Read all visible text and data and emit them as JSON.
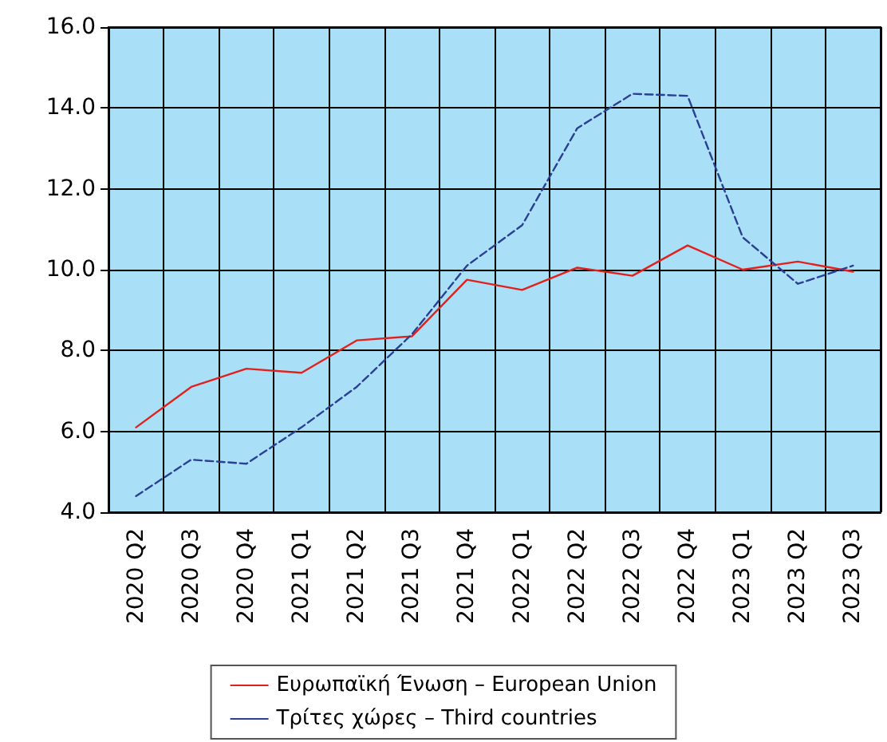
{
  "chart_data": {
    "type": "line",
    "categories": [
      "2020 Q2",
      "2020 Q3",
      "2020 Q4",
      "2021 Q1",
      "2021 Q2",
      "2021 Q3",
      "2021 Q4",
      "2022 Q1",
      "2022 Q2",
      "2022 Q3",
      "2022 Q4",
      "2023 Q1",
      "2023 Q2",
      "2023 Q3"
    ],
    "series": [
      {
        "name": "Ευρωπαϊκή Ένωση – European Union",
        "color": "#e3211c",
        "line_style": "solid",
        "values": [
          6.1,
          7.1,
          7.55,
          7.45,
          8.25,
          8.35,
          9.75,
          9.5,
          10.05,
          9.85,
          10.6,
          10.0,
          10.2,
          9.95
        ]
      },
      {
        "name": "Τρίτες χώρες – Third countries",
        "color": "#2b3f93",
        "line_style": "dashed",
        "values": [
          4.4,
          5.3,
          5.2,
          6.1,
          7.1,
          8.4,
          10.1,
          11.1,
          13.5,
          14.35,
          14.3,
          10.8,
          9.65,
          10.1
        ]
      }
    ],
    "ylim": [
      4,
      16
    ],
    "yticks": [
      {
        "value": 4,
        "label": "4.0"
      },
      {
        "value": 6,
        "label": "6.0"
      },
      {
        "value": 8,
        "label": "8.0"
      },
      {
        "value": 10,
        "label": "10.0"
      },
      {
        "value": 12,
        "label": "12.0"
      },
      {
        "value": 14,
        "label": "14.0"
      },
      {
        "value": 16,
        "label": "16.0"
      }
    ],
    "grid": true,
    "legend": "bottom",
    "marker": "none"
  }
}
